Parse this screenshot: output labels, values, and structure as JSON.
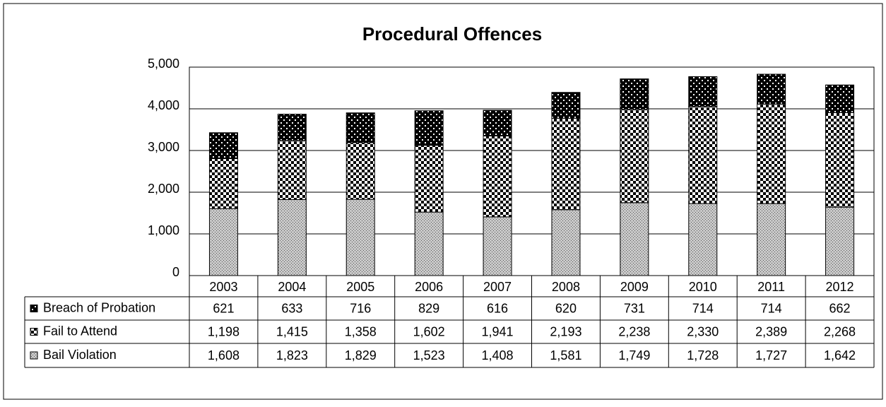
{
  "chart_data": {
    "type": "stacked_bar",
    "title": "Procedural Offences",
    "categories": [
      "2003",
      "2004",
      "2005",
      "2006",
      "2007",
      "2008",
      "2009",
      "2010",
      "2011",
      "2012"
    ],
    "series": [
      {
        "name": "Bail Violation",
        "color": "#a0a0a0",
        "values": [
          1608,
          1823,
          1829,
          1523,
          1408,
          1581,
          1749,
          1728,
          1727,
          1642
        ],
        "value_labels": [
          "1,608",
          "1,823",
          "1,829",
          "1,523",
          "1,408",
          "1,581",
          "1,749",
          "1,728",
          "1,727",
          "1,642"
        ]
      },
      {
        "name": "Fail to Attend",
        "color": "#ffffff",
        "values": [
          1198,
          1415,
          1358,
          1602,
          1941,
          2193,
          2238,
          2330,
          2389,
          2268
        ],
        "value_labels": [
          "1,198",
          "1,415",
          "1,358",
          "1,602",
          "1,941",
          "2,193",
          "2,238",
          "2,330",
          "2,389",
          "2,268"
        ]
      },
      {
        "name": "Breach of Probation",
        "color": "#000000",
        "values": [
          621,
          633,
          716,
          829,
          616,
          620,
          731,
          714,
          714,
          662
        ]
      }
    ],
    "ylim": [
      0,
      5000
    ],
    "yticks": [
      0,
      {
        "value": 1000,
        "label": "1,000"
      },
      {
        "value": 2000,
        "label": "2,000"
      },
      {
        "value": 3000,
        "label": "3,000"
      },
      {
        "value": 4000,
        "label": "4,000"
      },
      {
        "value": 5000,
        "label": "5,000"
      }
    ],
    "grid": true
  }
}
